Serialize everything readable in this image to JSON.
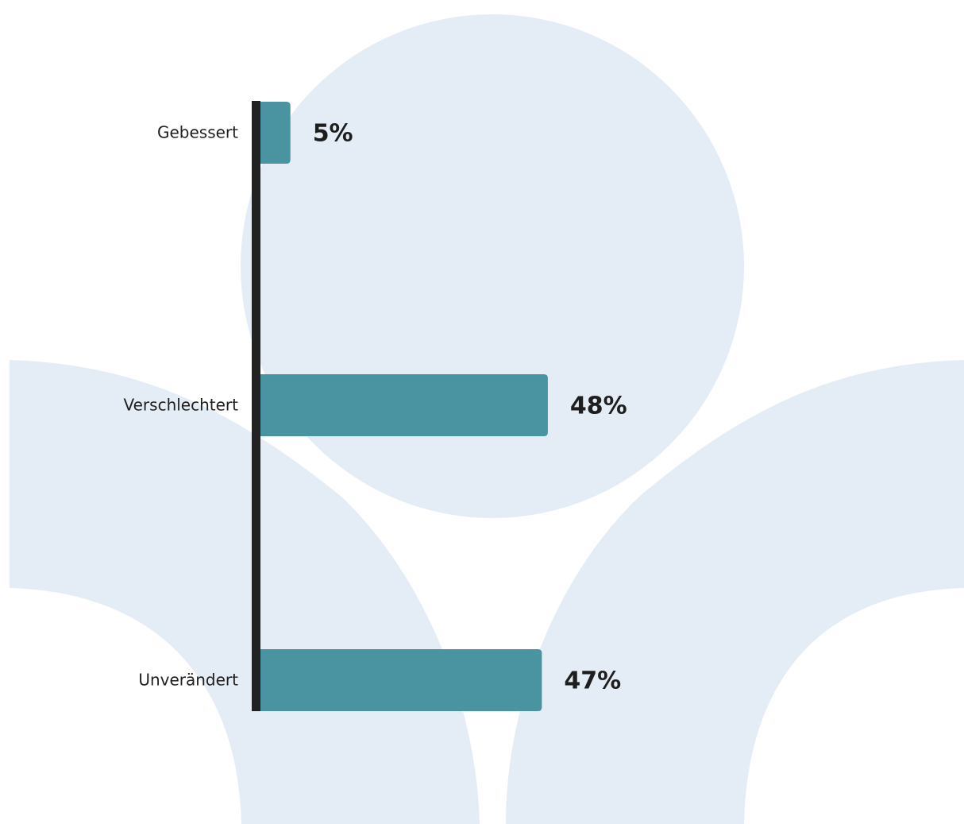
{
  "chart_data": {
    "type": "bar",
    "categories": [
      "Gebessert",
      "Verschlechtert",
      "Unverändert"
    ],
    "values": [
      5,
      48,
      47
    ],
    "value_labels": [
      "5%",
      "48%",
      "47%"
    ],
    "color": "#4a94a1"
  }
}
